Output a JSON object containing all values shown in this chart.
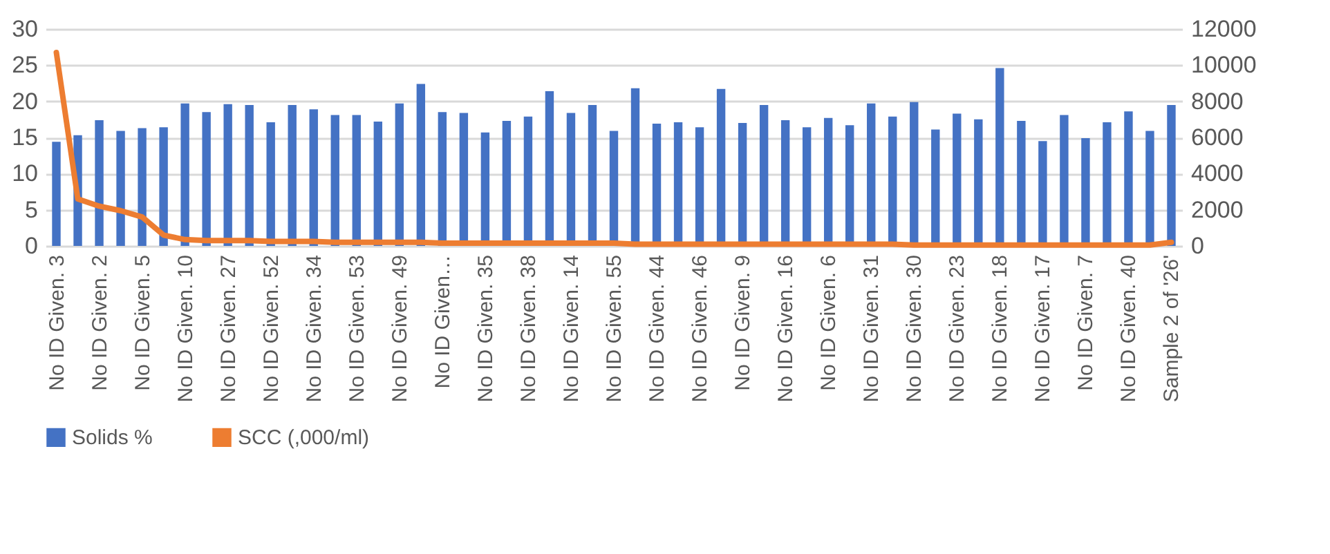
{
  "chart_data": {
    "type": "bar",
    "categories": [
      "No ID Given. 3",
      null,
      "No ID Given. 2",
      null,
      "No ID Given. 5",
      null,
      "No ID Given. 10",
      null,
      "No ID Given. 27",
      null,
      "No ID Given. 52",
      null,
      "No ID Given. 34",
      null,
      "No ID Given. 53",
      null,
      "No ID Given. 49",
      null,
      "No ID Given…",
      null,
      "No ID Given. 35",
      null,
      "No ID Given. 38",
      null,
      "No ID Given. 14",
      null,
      "No ID Given. 55",
      null,
      "No ID Given. 44",
      null,
      "No ID Given. 46",
      null,
      "No ID Given. 9",
      null,
      "No ID Given. 16",
      null,
      "No ID Given. 6",
      null,
      "No ID Given. 31",
      null,
      "No ID Given. 30",
      null,
      "No ID Given. 23",
      null,
      "No ID Given. 18",
      null,
      "No ID Given. 17",
      null,
      "No ID Given. 7",
      null,
      "No ID Given. 40",
      null,
      "Sample 2 of '26'"
    ],
    "series": [
      {
        "name": "Solids %",
        "color": "#4472c4",
        "values": [
          14.4,
          15.3,
          17.4,
          15.9,
          16.3,
          16.4,
          19.7,
          18.5,
          19.6,
          19.5,
          17.1,
          19.5,
          18.9,
          18.1,
          18.1,
          17.2,
          19.7,
          22.4,
          18.5,
          18.4,
          15.7,
          17.3,
          17.9,
          21.4,
          18.4,
          19.5,
          15.9,
          21.8,
          16.9,
          17.1,
          16.4,
          21.7,
          17.0,
          19.5,
          17.4,
          16.4,
          17.7,
          16.7,
          19.7,
          17.9,
          19.9,
          16.1,
          18.3,
          17.5,
          24.6,
          17.3,
          14.5,
          18.1,
          14.9,
          17.1,
          18.6,
          15.9,
          19.5
        ]
      },
      {
        "name": "SCC (,000/ml)",
        "type": "line",
        "axis": "y2",
        "color": "#ed7d31",
        "values": [
          10700,
          2600,
          2200,
          1950,
          1600,
          600,
          350,
          300,
          300,
          300,
          250,
          250,
          250,
          200,
          200,
          200,
          200,
          200,
          150,
          150,
          150,
          150,
          150,
          150,
          150,
          150,
          150,
          100,
          100,
          100,
          100,
          100,
          100,
          100,
          100,
          100,
          100,
          100,
          100,
          100,
          50,
          50,
          50,
          50,
          50,
          50,
          50,
          50,
          50,
          50,
          50,
          50,
          200
        ]
      }
    ],
    "ylim": [
      0,
      30
    ],
    "yticks": [
      0,
      5,
      10,
      15,
      20,
      25,
      30
    ],
    "y2lim": [
      0,
      12000
    ],
    "y2ticks": [
      0,
      2000,
      4000,
      6000,
      8000,
      10000,
      12000
    ],
    "grid": "y",
    "legend": "bottom"
  }
}
